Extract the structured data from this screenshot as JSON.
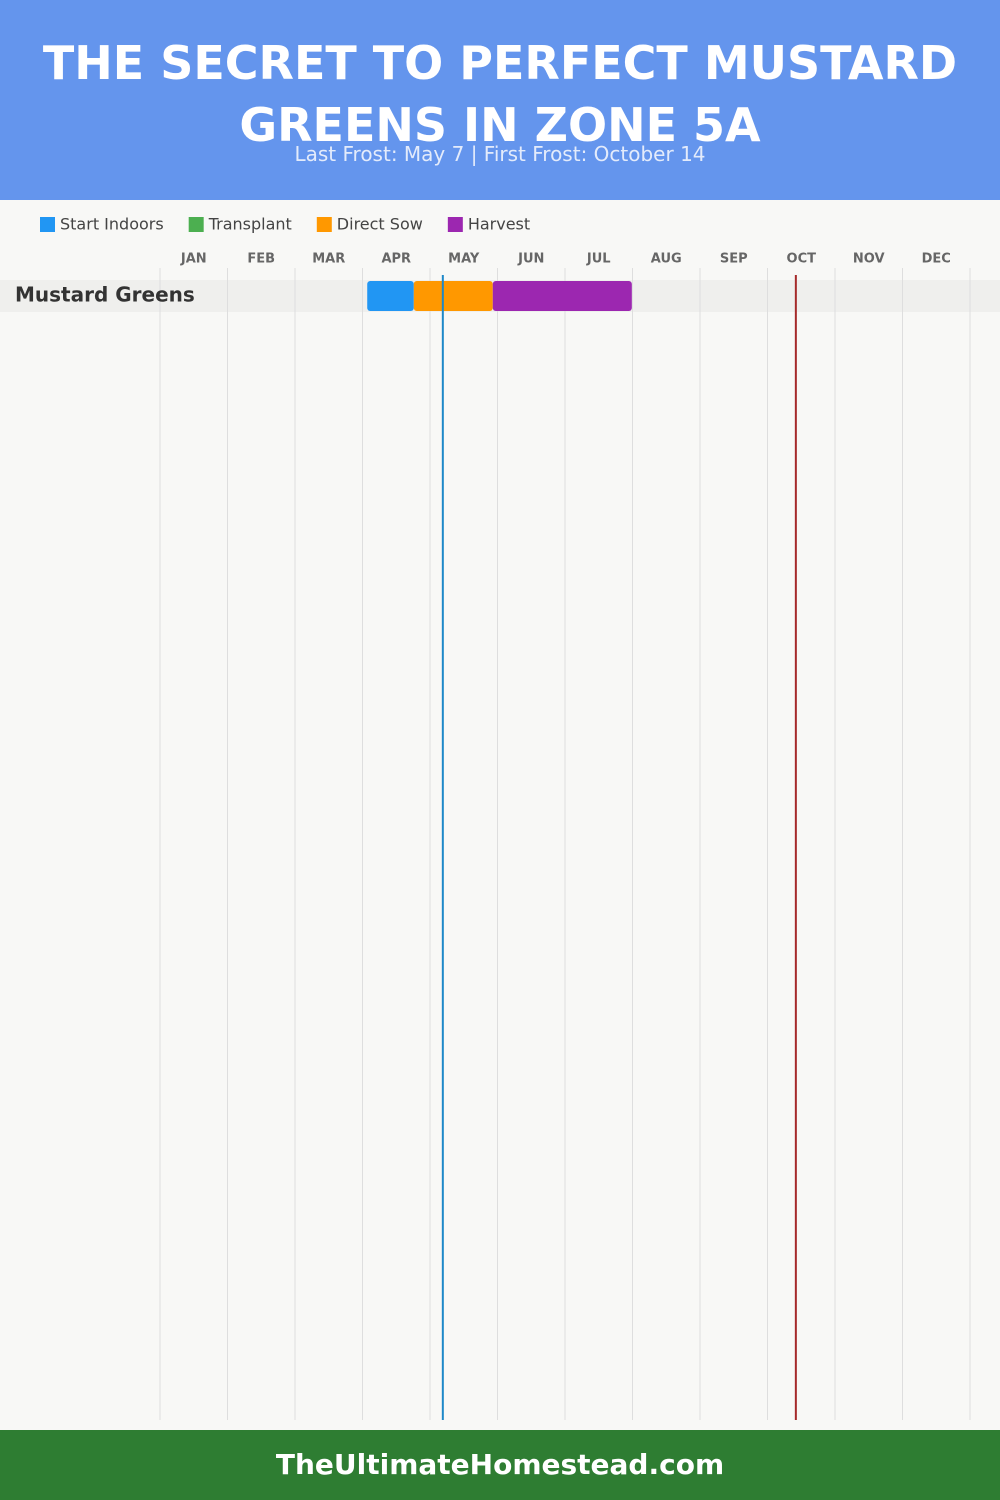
{
  "chart_data": {
    "type": "gantt",
    "title": "THE SECRET TO PERFECT MUSTARD GREENS IN ZONE 5A",
    "subtitle": "Last Frost: May 7 | First Frost: October 14",
    "categories": [
      "JAN",
      "FEB",
      "MAR",
      "APR",
      "MAY",
      "JUN",
      "JUL",
      "AUG",
      "SEP",
      "OCT",
      "NOV",
      "DEC"
    ],
    "xlim": [
      0,
      12
    ],
    "rows": [
      "Mustard Greens"
    ],
    "series": [
      {
        "name": "Start Indoors",
        "color": "#2196f3",
        "start": [
          3.07
        ],
        "end": [
          3.76
        ]
      },
      {
        "name": "Transplant",
        "color": "#4caf50",
        "start": [
          null
        ],
        "end": [
          null
        ]
      },
      {
        "name": "Direct Sow",
        "color": "#ff9800",
        "start": [
          3.76
        ],
        "end": [
          4.93
        ]
      },
      {
        "name": "Harvest",
        "color": "#9c27b0",
        "start": [
          4.93
        ],
        "end": [
          6.99
        ]
      }
    ],
    "markers": [
      {
        "value": 4.19,
        "color": "#1e88c8"
      },
      {
        "value": 9.42,
        "color": "#a52a2a"
      }
    ],
    "footer": "TheUltimateHomestead.com"
  }
}
